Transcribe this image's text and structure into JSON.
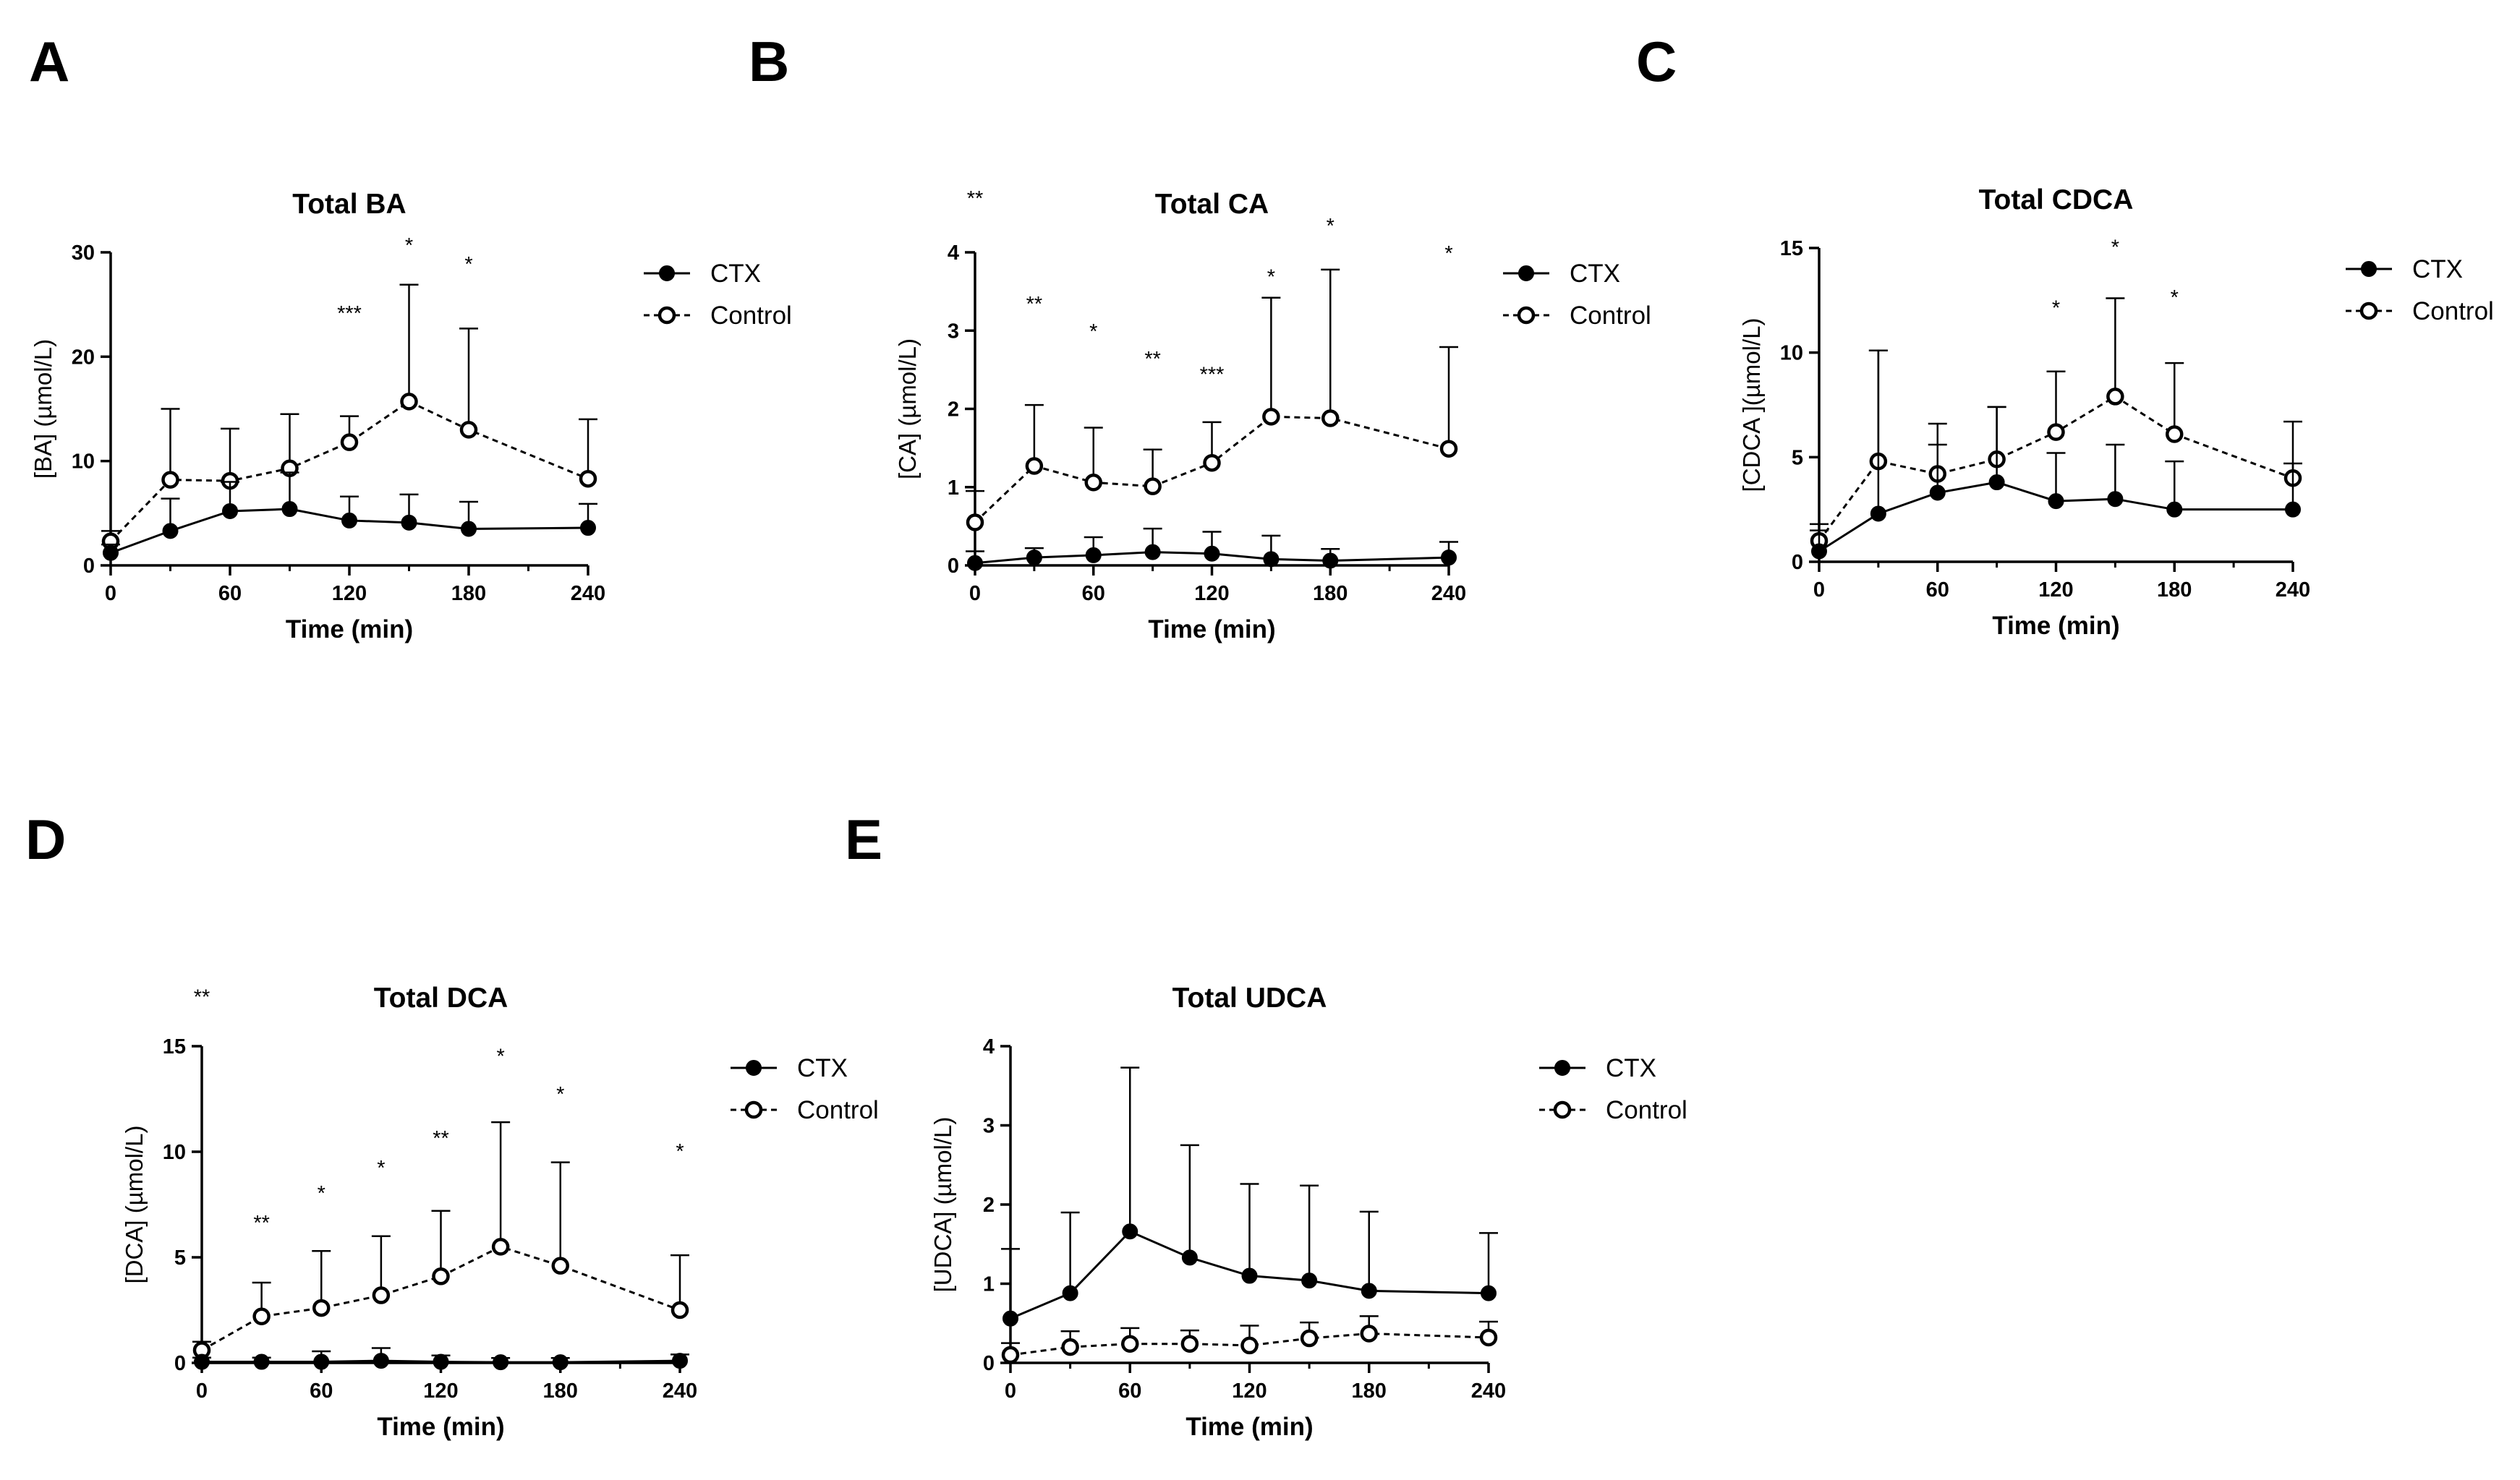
{
  "chart_data": [
    {
      "panel": "A",
      "type": "line",
      "title": "Total BA",
      "xlabel": "Time (min)",
      "ylabel": "[BA] (µmol/L)",
      "xlim": [
        0,
        240
      ],
      "ylim": [
        0,
        30
      ],
      "xticks": [
        0,
        60,
        120,
        180,
        240
      ],
      "yticks": [
        0,
        10,
        20,
        30
      ],
      "legend": "right",
      "series": [
        {
          "name": "CTX",
          "style": "solid-filled",
          "x": [
            0,
            30,
            60,
            90,
            120,
            150,
            180,
            240
          ],
          "y": [
            1.2,
            3.3,
            5.2,
            5.4,
            4.3,
            4.1,
            3.5,
            3.6
          ],
          "err": [
            0.8,
            3.1,
            2.8,
            3.5,
            2.3,
            2.7,
            2.6,
            2.3
          ]
        },
        {
          "name": "Control",
          "style": "dashed-open",
          "x": [
            0,
            30,
            60,
            90,
            120,
            150,
            180,
            240
          ],
          "y": [
            2.3,
            8.2,
            8.1,
            9.3,
            11.8,
            15.7,
            13.0,
            8.3
          ],
          "err": [
            1.0,
            6.8,
            5.0,
            5.2,
            2.5,
            11.2,
            9.7,
            5.7
          ]
        }
      ],
      "annotations": [
        {
          "x": 120,
          "text": "***",
          "level": 23.5
        },
        {
          "x": 150,
          "text": "*",
          "level": 30.0
        },
        {
          "x": 180,
          "text": "*",
          "level": 28.2
        }
      ]
    },
    {
      "panel": "B",
      "type": "line",
      "title": "Total  CA",
      "xlabel": "Time (min)",
      "ylabel": "[CA] (µmol/L)",
      "xlim": [
        0,
        240
      ],
      "ylim": [
        0,
        4
      ],
      "xticks": [
        0,
        60,
        120,
        180,
        240
      ],
      "yticks": [
        0,
        1,
        2,
        3,
        4
      ],
      "legend": "right",
      "series": [
        {
          "name": "CTX",
          "style": "solid-filled",
          "x": [
            0,
            30,
            60,
            90,
            120,
            150,
            180,
            240
          ],
          "y": [
            0.03,
            0.1,
            0.13,
            0.17,
            0.15,
            0.08,
            0.06,
            0.1
          ],
          "err": [
            0.15,
            0.12,
            0.23,
            0.3,
            0.28,
            0.3,
            0.15,
            0.2
          ]
        },
        {
          "name": "Control",
          "style": "dashed-open",
          "x": [
            0,
            30,
            60,
            90,
            120,
            150,
            180,
            240
          ],
          "y": [
            0.55,
            1.27,
            1.06,
            1.01,
            1.31,
            1.9,
            1.88,
            1.49
          ],
          "err": [
            0.4,
            0.78,
            0.7,
            0.47,
            0.52,
            1.52,
            1.9,
            1.3
          ]
        }
      ],
      "annotations": [
        {
          "x": 0,
          "text": "**",
          "level": 4.6
        },
        {
          "x": 30,
          "text": "**",
          "level": 3.25
        },
        {
          "x": 60,
          "text": "*",
          "level": 2.9
        },
        {
          "x": 90,
          "text": "**",
          "level": 2.55
        },
        {
          "x": 120,
          "text": "***",
          "level": 2.35
        },
        {
          "x": 150,
          "text": "*",
          "level": 3.6
        },
        {
          "x": 180,
          "text": "*",
          "level": 4.25
        },
        {
          "x": 240,
          "text": "*",
          "level": 3.9
        }
      ]
    },
    {
      "panel": "C",
      "type": "line",
      "title": "Total CDCA",
      "xlabel": "Time (min)",
      "ylabel": "[CDCA ](µmol/L)",
      "xlim": [
        0,
        240
      ],
      "ylim": [
        0,
        15
      ],
      "xticks": [
        0,
        60,
        120,
        180,
        240
      ],
      "yticks": [
        0,
        5,
        10,
        15
      ],
      "legend": "right",
      "series": [
        {
          "name": "CTX",
          "style": "solid-filled",
          "x": [
            0,
            30,
            60,
            90,
            120,
            150,
            180,
            240
          ],
          "y": [
            0.5,
            2.3,
            3.3,
            3.8,
            2.9,
            3.0,
            2.5,
            2.5
          ],
          "err": [
            1.3,
            7.8,
            2.3,
            3.6,
            2.3,
            2.6,
            2.3,
            2.2
          ]
        },
        {
          "name": "Control",
          "style": "dashed-open",
          "x": [
            0,
            30,
            60,
            90,
            120,
            150,
            180,
            240
          ],
          "y": [
            1.0,
            4.8,
            4.2,
            4.9,
            6.2,
            7.9,
            6.1,
            4.0
          ],
          "err": [
            0.5,
            5.3,
            2.4,
            2.5,
            2.9,
            4.7,
            3.4,
            2.7
          ]
        }
      ],
      "annotations": [
        {
          "x": 120,
          "text": "*",
          "level": 11.8
        },
        {
          "x": 150,
          "text": "*",
          "level": 14.7
        },
        {
          "x": 180,
          "text": "*",
          "level": 12.3
        }
      ]
    },
    {
      "panel": "D",
      "type": "line",
      "title": "Total DCA",
      "xlabel": "Time (min)",
      "ylabel": "[DCA] (µmol/L)",
      "xlim": [
        0,
        240
      ],
      "ylim": [
        0,
        15
      ],
      "xticks": [
        0,
        60,
        120,
        180,
        240
      ],
      "yticks": [
        0,
        5,
        10,
        15
      ],
      "legend": "right",
      "series": [
        {
          "name": "CTX",
          "style": "solid-filled",
          "x": [
            0,
            30,
            60,
            90,
            120,
            150,
            180,
            240
          ],
          "y": [
            0.05,
            0.05,
            0.05,
            0.1,
            0.05,
            0.03,
            0.03,
            0.1
          ],
          "err": [
            0.2,
            0.2,
            0.5,
            0.6,
            0.3,
            0.2,
            0.2,
            0.3
          ]
        },
        {
          "name": "Control",
          "style": "dashed-open",
          "x": [
            0,
            30,
            60,
            90,
            120,
            150,
            180,
            240
          ],
          "y": [
            0.6,
            2.2,
            2.6,
            3.2,
            4.1,
            5.5,
            4.6,
            2.5
          ],
          "err": [
            0.4,
            1.6,
            2.7,
            2.8,
            3.1,
            5.9,
            4.9,
            2.6
          ]
        }
      ],
      "annotations": [
        {
          "x": 0,
          "text": "**",
          "level": 17.0
        },
        {
          "x": 30,
          "text": "**",
          "level": 6.3
        },
        {
          "x": 60,
          "text": "*",
          "level": 7.7
        },
        {
          "x": 90,
          "text": "*",
          "level": 8.9
        },
        {
          "x": 120,
          "text": "**",
          "level": 10.3
        },
        {
          "x": 150,
          "text": "*",
          "level": 14.2
        },
        {
          "x": 180,
          "text": "*",
          "level": 12.4
        },
        {
          "x": 240,
          "text": "*",
          "level": 9.7
        }
      ]
    },
    {
      "panel": "E",
      "type": "line",
      "title": "Total UDCA",
      "xlabel": "Time (min)",
      "ylabel": "[UDCA] (µmol/L)",
      "xlim": [
        0,
        240
      ],
      "ylim": [
        0,
        4
      ],
      "xticks": [
        0,
        60,
        120,
        180,
        240
      ],
      "yticks": [
        0,
        1,
        2,
        3,
        4
      ],
      "legend": "right",
      "series": [
        {
          "name": "CTX",
          "style": "solid-filled",
          "x": [
            0,
            30,
            60,
            90,
            120,
            150,
            180,
            240
          ],
          "y": [
            0.56,
            0.88,
            1.66,
            1.33,
            1.1,
            1.04,
            0.91,
            0.88
          ],
          "err": [
            0.88,
            1.02,
            2.07,
            1.42,
            1.16,
            1.2,
            1.0,
            0.76
          ]
        },
        {
          "name": "Control",
          "style": "dashed-open",
          "x": [
            0,
            30,
            60,
            90,
            120,
            150,
            180,
            240
          ],
          "y": [
            0.1,
            0.2,
            0.24,
            0.24,
            0.22,
            0.31,
            0.37,
            0.32
          ],
          "err": [
            0.15,
            0.2,
            0.2,
            0.17,
            0.25,
            0.2,
            0.22,
            0.2
          ]
        }
      ],
      "annotations": []
    }
  ]
}
